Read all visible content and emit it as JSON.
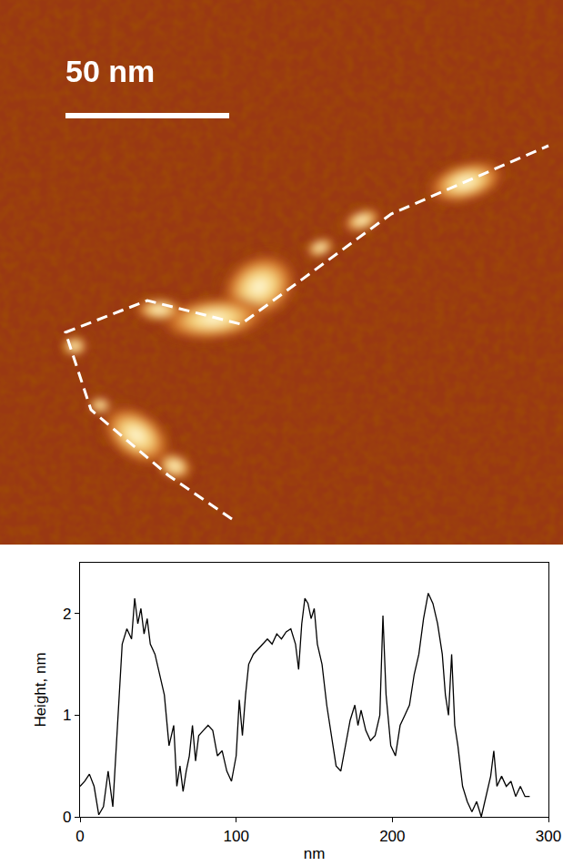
{
  "image": {
    "scale_bar": "50 nm"
  },
  "chart_data": {
    "type": "line",
    "color": "#000000",
    "x_label": "nm",
    "y_label": "Height, nm",
    "xlim": [
      0,
      300
    ],
    "xticks": [
      0,
      100,
      200,
      300
    ],
    "ylim": [
      0,
      2.5
    ],
    "yticks": [
      0,
      1,
      2
    ],
    "grid": false,
    "x": [
      0,
      3,
      6,
      9,
      12,
      15,
      18,
      21,
      24,
      27,
      30,
      33,
      35,
      37,
      39,
      41,
      43,
      45,
      48,
      51,
      54,
      57,
      60,
      62,
      64,
      66,
      68,
      70,
      72,
      74,
      76,
      79,
      82,
      85,
      88,
      91,
      94,
      97,
      100,
      102,
      104,
      106,
      108,
      111,
      114,
      117,
      120,
      123,
      126,
      129,
      132,
      135,
      138,
      140,
      142,
      144,
      146,
      148,
      150,
      152,
      155,
      158,
      161,
      164,
      167,
      170,
      173,
      176,
      178,
      180,
      183,
      186,
      189,
      192,
      194,
      196,
      199,
      202,
      205,
      208,
      211,
      214,
      217,
      220,
      223,
      226,
      229,
      232,
      234,
      236,
      238,
      240,
      242,
      245,
      248,
      251,
      254,
      257,
      260,
      263,
      265,
      267,
      270,
      273,
      276,
      279,
      282,
      285,
      288
    ],
    "values": [
      0.3,
      0.35,
      0.42,
      0.3,
      0.02,
      0.1,
      0.45,
      0.1,
      0.9,
      1.7,
      1.85,
      1.75,
      2.15,
      1.9,
      2.05,
      1.8,
      1.95,
      1.7,
      1.6,
      1.4,
      1.2,
      0.7,
      0.9,
      0.3,
      0.5,
      0.25,
      0.45,
      0.6,
      0.9,
      0.55,
      0.8,
      0.85,
      0.9,
      0.85,
      0.6,
      0.65,
      0.45,
      0.35,
      0.6,
      1.15,
      0.8,
      1.2,
      1.5,
      1.6,
      1.65,
      1.7,
      1.75,
      1.7,
      1.8,
      1.75,
      1.82,
      1.85,
      1.7,
      1.45,
      1.9,
      2.15,
      2.1,
      1.95,
      2.05,
      1.7,
      1.5,
      1.1,
      0.8,
      0.5,
      0.45,
      0.7,
      0.95,
      1.1,
      0.9,
      1.05,
      0.85,
      0.75,
      0.8,
      1.0,
      1.98,
      1.2,
      0.7,
      0.6,
      0.9,
      1.0,
      1.1,
      1.4,
      1.6,
      1.95,
      2.2,
      2.1,
      1.9,
      1.6,
      1.2,
      1.0,
      1.6,
      0.9,
      0.7,
      0.3,
      0.15,
      0.05,
      0.15,
      0.0,
      0.2,
      0.4,
      0.65,
      0.3,
      0.4,
      0.3,
      0.35,
      0.2,
      0.3,
      0.2,
      0.2
    ]
  }
}
